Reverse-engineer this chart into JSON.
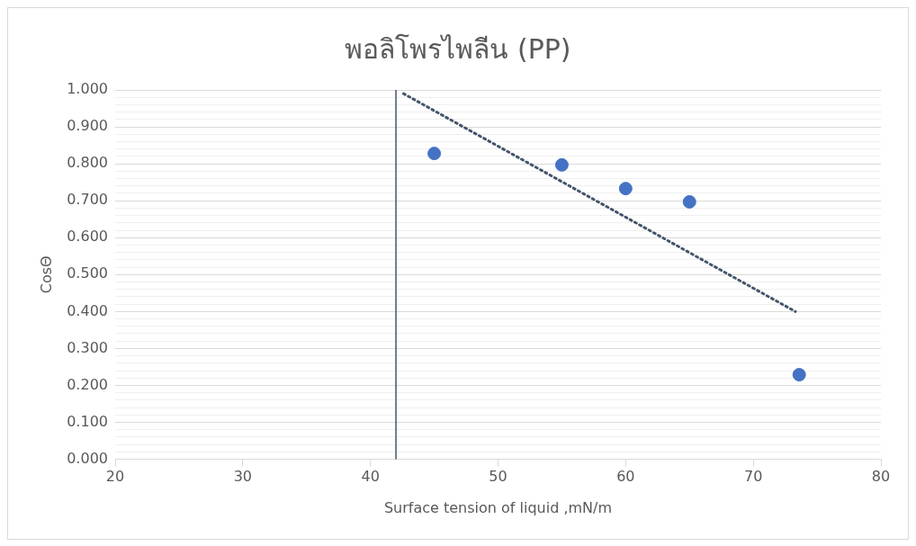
{
  "chart_data": {
    "type": "scatter",
    "title": "พอลิโพรไพลีน (PP)",
    "xlabel": "Surface tension of liquid ,mN/m",
    "ylabel": "CosΘ",
    "xlim": [
      20,
      80
    ],
    "xticks": [
      20,
      30,
      40,
      50,
      60,
      70,
      80
    ],
    "ylim": [
      0,
      1
    ],
    "yticks": [
      {
        "value": 0,
        "label": "0.000"
      },
      {
        "value": 0.02,
        "label": null
      },
      {
        "value": 0.04,
        "label": null
      },
      {
        "value": 0.06,
        "label": null
      },
      {
        "value": 0.08,
        "label": null
      },
      {
        "value": 0.1,
        "label": "0.100"
      },
      {
        "value": 0.12,
        "label": null
      },
      {
        "value": 0.14,
        "label": null
      },
      {
        "value": 0.16,
        "label": null
      },
      {
        "value": 0.18,
        "label": null
      },
      {
        "value": 0.2,
        "label": "0.200"
      },
      {
        "value": 0.22,
        "label": null
      },
      {
        "value": 0.24,
        "label": null
      },
      {
        "value": 0.26,
        "label": null
      },
      {
        "value": 0.28,
        "label": null
      },
      {
        "value": 0.3,
        "label": "0.300"
      },
      {
        "value": 0.32,
        "label": null
      },
      {
        "value": 0.34,
        "label": null
      },
      {
        "value": 0.36,
        "label": null
      },
      {
        "value": 0.38,
        "label": null
      },
      {
        "value": 0.4,
        "label": "0.400"
      },
      {
        "value": 0.42,
        "label": null
      },
      {
        "value": 0.44,
        "label": null
      },
      {
        "value": 0.46,
        "label": null
      },
      {
        "value": 0.48,
        "label": null
      },
      {
        "value": 0.5,
        "label": "0.500"
      },
      {
        "value": 0.52,
        "label": null
      },
      {
        "value": 0.54,
        "label": null
      },
      {
        "value": 0.56,
        "label": null
      },
      {
        "value": 0.58,
        "label": null
      },
      {
        "value": 0.6,
        "label": "0.600"
      },
      {
        "value": 0.62,
        "label": null
      },
      {
        "value": 0.64,
        "label": null
      },
      {
        "value": 0.66,
        "label": null
      },
      {
        "value": 0.68,
        "label": null
      },
      {
        "value": 0.7,
        "label": "0.700"
      },
      {
        "value": 0.72,
        "label": null
      },
      {
        "value": 0.74,
        "label": null
      },
      {
        "value": 0.76,
        "label": null
      },
      {
        "value": 0.78,
        "label": null
      },
      {
        "value": 0.8,
        "label": "0.800"
      },
      {
        "value": 0.82,
        "label": null
      },
      {
        "value": 0.84,
        "label": null
      },
      {
        "value": 0.86,
        "label": null
      },
      {
        "value": 0.88,
        "label": null
      },
      {
        "value": 0.9,
        "label": "0.900"
      },
      {
        "value": 0.92,
        "label": null
      },
      {
        "value": 0.94,
        "label": null
      },
      {
        "value": 0.96,
        "label": null
      },
      {
        "value": 0.98,
        "label": null
      },
      {
        "value": 1,
        "label": "1.000"
      }
    ],
    "grid": "y",
    "legend": false,
    "marker": "circle",
    "series": [
      {
        "color": "#4472c4",
        "x": [
          45,
          55,
          60,
          65,
          73.6
        ],
        "values": [
          0.828,
          0.797,
          0.733,
          0.697,
          0.229
        ]
      },
      {
        "type": "line",
        "color": "#44546a",
        "line_style": "dotted",
        "marker": "none",
        "x": [
          42.6,
          73.3
        ],
        "values": [
          0.99,
          0.4
        ]
      }
    ],
    "ref_lines": [
      {
        "axis": "x",
        "value": 42,
        "color": "#44546a"
      }
    ]
  }
}
